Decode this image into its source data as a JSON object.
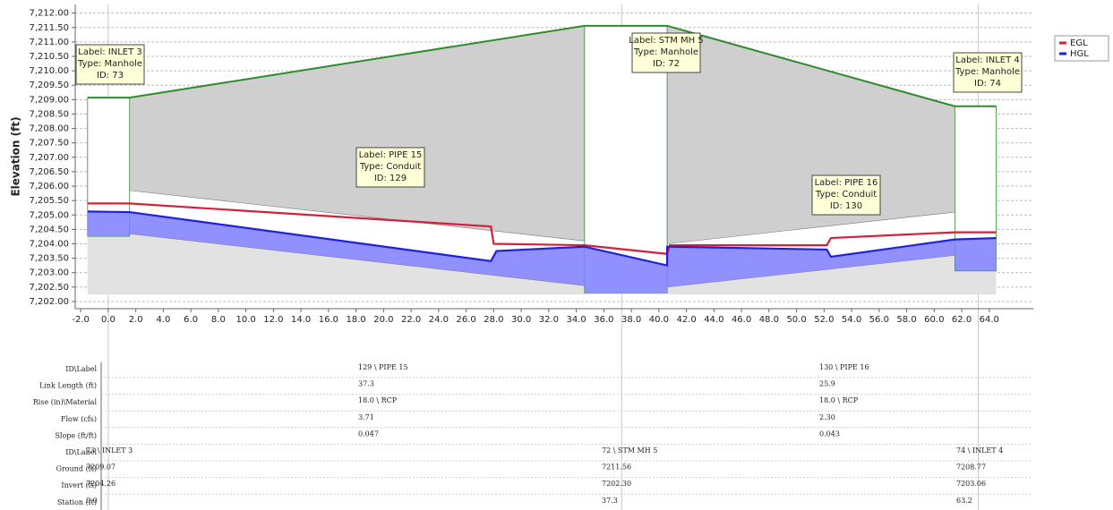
{
  "chart_data": {
    "type": "profile",
    "y_label": "Elevation (ft)",
    "xlim": [
      -2.4,
      67.2
    ],
    "ylim": [
      7201.75,
      7212.3
    ],
    "grid": true,
    "legend": "top-right",
    "xticks": [
      {
        "value": -2,
        "label": "-2.0"
      },
      {
        "value": 0,
        "label": "0.0"
      },
      {
        "value": 2,
        "label": "2.0"
      },
      {
        "value": 4,
        "label": "4.0"
      },
      {
        "value": 6,
        "label": "6.0"
      },
      {
        "value": 8,
        "label": "8.0"
      },
      {
        "value": 10,
        "label": "10.0"
      },
      {
        "value": 12,
        "label": "12.0"
      },
      {
        "value": 14,
        "label": "14.0"
      },
      {
        "value": 16,
        "label": "16.0"
      },
      {
        "value": 18,
        "label": "18.0"
      },
      {
        "value": 20,
        "label": "20.0"
      },
      {
        "value": 22,
        "label": "22.0"
      },
      {
        "value": 24,
        "label": "24.0"
      },
      {
        "value": 26,
        "label": "26.0"
      },
      {
        "value": 28,
        "label": "28.0"
      },
      {
        "value": 30,
        "label": "30.0"
      },
      {
        "value": 32,
        "label": "32.0"
      },
      {
        "value": 34,
        "label": "34.0"
      },
      {
        "value": 36,
        "label": "36.0"
      },
      {
        "value": 38,
        "label": "38.0"
      },
      {
        "value": 40,
        "label": "40.0"
      },
      {
        "value": 42,
        "label": "42.0"
      },
      {
        "value": 44,
        "label": "44.0"
      },
      {
        "value": 46,
        "label": "46.0"
      },
      {
        "value": 48,
        "label": "48.0"
      },
      {
        "value": 50,
        "label": "50.0"
      },
      {
        "value": 52,
        "label": "52.0"
      },
      {
        "value": 54,
        "label": "54.0"
      },
      {
        "value": 56,
        "label": "56.0"
      },
      {
        "value": 58,
        "label": "58.0"
      },
      {
        "value": 60,
        "label": "60.0"
      },
      {
        "value": 62,
        "label": "62.0"
      },
      {
        "value": 64,
        "label": "64.0"
      }
    ],
    "yticks": [
      {
        "value": 7202,
        "label": "7,202.00"
      },
      {
        "value": 7202.5,
        "label": "7,202.50"
      },
      {
        "value": 7203,
        "label": "7,203.00"
      },
      {
        "value": 7203.5,
        "label": "7,203.50"
      },
      {
        "value": 7204,
        "label": "7,204.00"
      },
      {
        "value": 7204.5,
        "label": "7,204.50"
      },
      {
        "value": 7205,
        "label": "7,205.00"
      },
      {
        "value": 7205.5,
        "label": "7,205.50"
      },
      {
        "value": 7206,
        "label": "7,206.00"
      },
      {
        "value": 7206.5,
        "label": "7,206.50"
      },
      {
        "value": 7207,
        "label": "7,207.00"
      },
      {
        "value": 7207.5,
        "label": "7,207.50"
      },
      {
        "value": 7208,
        "label": "7,208.00"
      },
      {
        "value": 7208.5,
        "label": "7,208.50"
      },
      {
        "value": 7209,
        "label": "7,209.00"
      },
      {
        "value": 7209.5,
        "label": "7,209.50"
      },
      {
        "value": 7210,
        "label": "7,210.00"
      },
      {
        "value": 7210.5,
        "label": "7,210.50"
      },
      {
        "value": 7211,
        "label": "7,211.00"
      },
      {
        "value": 7211.5,
        "label": "7,211.50"
      },
      {
        "value": 7212,
        "label": "7,212.00"
      }
    ],
    "base": 7202.25,
    "ground": {
      "color": "#2e8b2e",
      "x": [
        -1.5,
        1.55,
        34.6,
        40.6,
        61.5,
        64.5
      ],
      "values": [
        7209.07,
        7209.07,
        7211.56,
        7211.56,
        7208.77,
        7208.77
      ]
    },
    "structures": [
      {
        "x": [
          -1.5,
          1.55
        ],
        "values": [
          7204.26,
          7209.07
        ]
      },
      {
        "x": [
          34.6,
          40.6
        ],
        "values": [
          7202.3,
          7211.56
        ]
      },
      {
        "x": [
          61.5,
          64.5
        ],
        "values": [
          7203.06,
          7208.77
        ]
      }
    ],
    "pipes": [
      {
        "x": [
          1.55,
          34.6
        ],
        "crown": [
          7205.85,
          7204.1
        ],
        "invert": [
          7204.35,
          7202.55
        ]
      },
      {
        "x": [
          40.6,
          61.5
        ],
        "crown": [
          7204.0,
          7205.1
        ],
        "invert": [
          7202.5,
          7203.6
        ]
      }
    ],
    "invert": {
      "x": [
        -1.5,
        1.55,
        1.55,
        34.6,
        34.6,
        40.6,
        40.6,
        61.5,
        61.5,
        64.5
      ],
      "values": [
        7204.26,
        7204.26,
        7204.35,
        7202.55,
        7202.3,
        7202.3,
        7202.5,
        7203.6,
        7203.06,
        7203.06
      ]
    },
    "water_color": "#7d7dff",
    "station_lines": [
      0,
      37.3,
      63.2
    ],
    "series": [
      {
        "name": "EGL",
        "color": "#d4213a",
        "x": [
          -1.5,
          1.55,
          27.8,
          28.0,
          34.6,
          40.6,
          40.8,
          52.2,
          52.5,
          61.5,
          64.5
        ],
        "values": [
          7205.4,
          7205.4,
          7204.6,
          7204.0,
          7203.95,
          7203.65,
          7203.95,
          7203.95,
          7204.2,
          7204.4,
          7204.4
        ]
      },
      {
        "name": "HGL",
        "color": "#1f1fe0",
        "x": [
          -1.5,
          1.55,
          27.8,
          28.2,
          34.6,
          40.6,
          40.6,
          52.2,
          52.5,
          61.5,
          64.5
        ],
        "values": [
          7205.12,
          7205.1,
          7203.4,
          7203.75,
          7203.9,
          7203.25,
          7203.9,
          7203.8,
          7203.55,
          7204.15,
          7204.2
        ]
      }
    ],
    "annotations": [
      [
        "Label: INLET 3",
        "Type: Manhole",
        "ID: 73"
      ],
      [
        "Label: PIPE 15",
        "Type: Conduit",
        "ID: 129"
      ],
      [
        "Label: STM MH 5",
        "Type: Manhole",
        "ID: 72"
      ],
      [
        "Label: PIPE 16",
        "Type: Conduit",
        "ID: 130"
      ],
      [
        "Label: INLET 4",
        "Type: Manhole",
        "ID: 74"
      ]
    ]
  },
  "table": {
    "rows": [
      {
        "label": "ID\\Label",
        "cells": [
          "129 \\ PIPE 15",
          "130 \\ PIPE 16"
        ]
      },
      {
        "label": "Link Length (ft)",
        "cells": [
          "37.3",
          "25.9"
        ]
      },
      {
        "label": "Rise (in)\\Material",
        "cells": [
          "18.0 \\ RCP",
          "18.0 \\ RCP"
        ]
      },
      {
        "label": "Flow (cfs)",
        "cells": [
          "3.71",
          "2.30"
        ]
      },
      {
        "label": "Slope (ft/ft)",
        "cells": [
          "0.047",
          "0.043"
        ]
      },
      {
        "label": "ID\\Label",
        "cells": [
          "73 \\ INLET 3",
          "72 \\ STM MH 5",
          "74 \\ INLET 4"
        ]
      },
      {
        "label": "Ground (ft)",
        "cells": [
          "7209.07",
          "7211.56",
          "7208.77"
        ]
      },
      {
        "label": "Invert (ft)",
        "cells": [
          "7204.26",
          "7202.30",
          "7203.06"
        ]
      },
      {
        "label": "Station (ft)",
        "cells": [
          "0.0",
          "37.3",
          "63.2"
        ]
      }
    ]
  }
}
